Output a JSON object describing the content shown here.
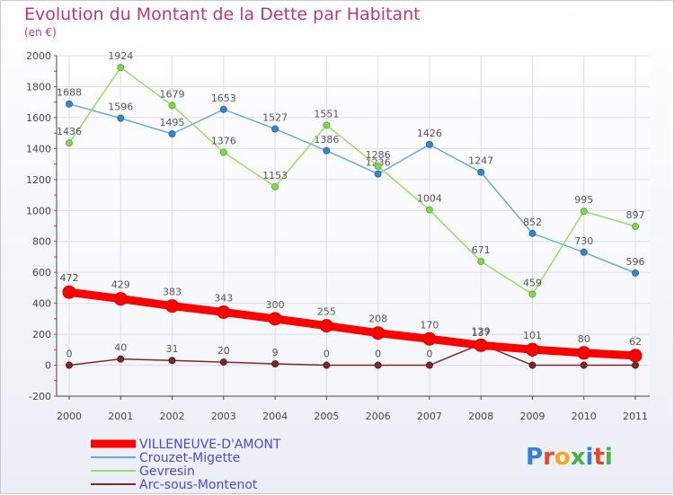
{
  "title": "Evolution du Montant de la Dette par Habitant",
  "subtitle": "(en €)",
  "brand": "Proxiti",
  "chart_data": {
    "type": "line",
    "x": [
      "2000",
      "2001",
      "2002",
      "2003",
      "2004",
      "2005",
      "2006",
      "2007",
      "2008",
      "2009",
      "2010",
      "2011"
    ],
    "ylim": [
      -200,
      2000
    ],
    "yticks": [
      -200,
      0,
      200,
      400,
      600,
      800,
      1000,
      1200,
      1400,
      1600,
      1800,
      2000
    ],
    "grid": true,
    "legend_position": "bottom-left",
    "series": [
      {
        "name": "VILLENEUVE-D'AMONT",
        "color": "#ff0000",
        "values": [
          472,
          429,
          383,
          343,
          300,
          255,
          208,
          170,
          129,
          101,
          80,
          62
        ]
      },
      {
        "name": "Crouzet-Migette",
        "color": "#6fa8d6",
        "values": [
          1688,
          1596,
          1495,
          1653,
          1527,
          1386,
          1236,
          1426,
          1247,
          852,
          730,
          596
        ]
      },
      {
        "name": "Gevresin",
        "color": "#99dd66",
        "values": [
          1436,
          1924,
          1679,
          1376,
          1153,
          1551,
          1286,
          1004,
          671,
          459,
          995,
          897
        ]
      },
      {
        "name": "Arc-sous-Montenot",
        "color": "#7a2a2a",
        "values": [
          0,
          40,
          31,
          20,
          9,
          0,
          0,
          0,
          137,
          0,
          0,
          0
        ]
      }
    ]
  }
}
